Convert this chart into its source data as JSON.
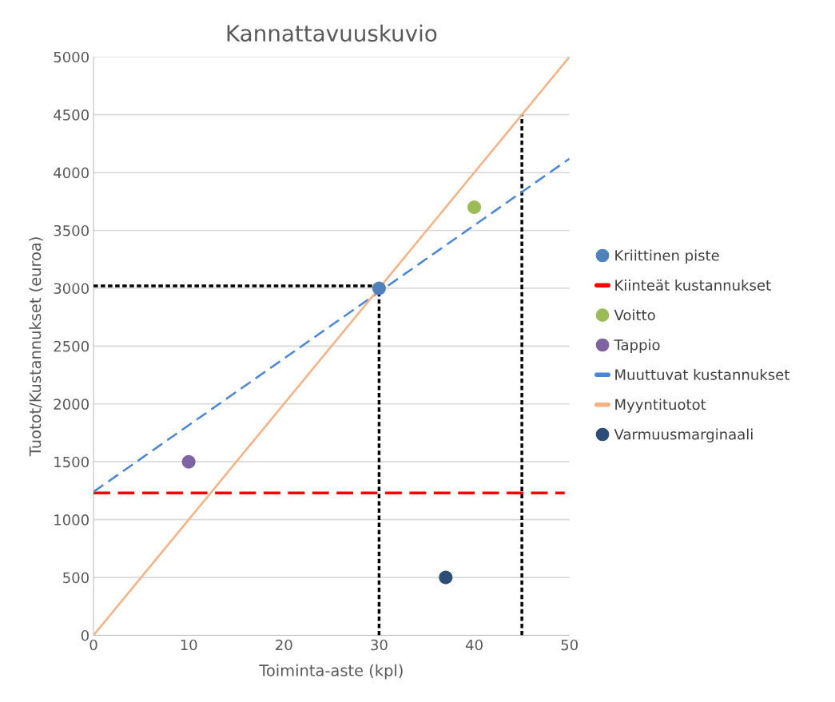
{
  "chart_data": {
    "type": "scatter",
    "title": "Kannattavuuskuvio",
    "xlabel": "Toiminta-aste (kpl)",
    "ylabel": "Tuotot/Kustannukset (euroa)",
    "xlim": [
      0,
      50
    ],
    "xticks": [
      0,
      10,
      20,
      30,
      40,
      50
    ],
    "ylim": [
      0,
      5000
    ],
    "yticks": [
      0,
      500,
      1000,
      1500,
      2000,
      2500,
      3000,
      3500,
      4000,
      4500,
      5000
    ],
    "grid": "y",
    "legend": "right",
    "series": [
      {
        "type": "line",
        "color": "#000000",
        "line_style": "dashed",
        "x": [
          0,
          30
        ],
        "values": [
          3020,
          3020
        ]
      },
      {
        "type": "line",
        "color": "#000000",
        "line_style": "dashed",
        "x": [
          30,
          30
        ],
        "values": [
          0,
          3000
        ]
      },
      {
        "type": "line",
        "color": "#000000",
        "line_style": "dashed",
        "x": [
          45,
          45
        ],
        "values": [
          0,
          4500
        ]
      },
      {
        "name": "Kriittinen piste",
        "marker": "circle",
        "color": "#4f81bd",
        "x": [
          30
        ],
        "values": [
          3000
        ]
      },
      {
        "name": "Kiinteät kustannukset",
        "type": "line",
        "line_style": "dashed",
        "color": "#ff0000",
        "x": [
          0,
          49.5
        ],
        "values": [
          1230,
          1230
        ]
      },
      {
        "name": "Voitto",
        "marker": "circle",
        "color": "#9bbb59",
        "x": [
          40
        ],
        "values": [
          3700
        ]
      },
      {
        "name": "Tappio",
        "marker": "circle",
        "color": "#8064a2",
        "x": [
          10
        ],
        "values": [
          1500
        ]
      },
      {
        "name": "Muuttuvat kustannukset",
        "type": "line",
        "line_style": "dashed",
        "color": "#4a86d4",
        "x": [
          0,
          50
        ],
        "values": [
          1240,
          4120
        ]
      },
      {
        "name": "Myyntituotot",
        "type": "line",
        "line_style": "solid",
        "color": "#f4b183",
        "x": [
          0,
          50
        ],
        "values": [
          0,
          5000
        ]
      },
      {
        "name": "Varmuusmarginaali",
        "marker": "circle",
        "color": "#2c4d75",
        "x": [
          37
        ],
        "values": [
          500
        ]
      }
    ]
  }
}
